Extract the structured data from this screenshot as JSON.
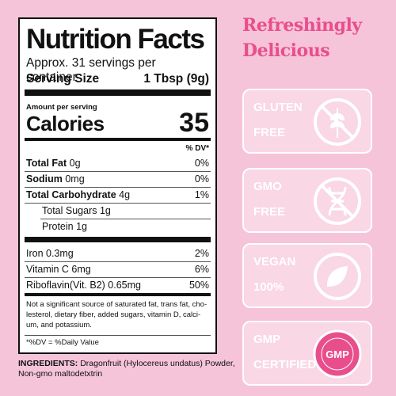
{
  "panel": {
    "title": "Nutrition Facts",
    "servings": "Approx. 31 servings per container",
    "serving_size_label": "Serving Size",
    "serving_size": "1 Tbsp (9g)",
    "amount_per_serving": "Amount per serving",
    "calories_label": "Calories",
    "calories": "35",
    "dv_header": "% DV*",
    "nutrients": [
      {
        "name": "Total Fat",
        "amount": "0g",
        "dv": "0%"
      },
      {
        "name": "Sodium",
        "amount": "0mg",
        "dv": "0%"
      },
      {
        "name": "Total Carbohydrate",
        "amount": "4g",
        "dv": "1%"
      },
      {
        "name": "Total Sugars",
        "amount": "1g"
      },
      {
        "name": "Protein",
        "amount": "1g"
      }
    ],
    "vitamins": [
      {
        "name": "Iron 0.3mg",
        "dv": "2%"
      },
      {
        "name": "Vitamin C 6mg",
        "dv": "6%"
      },
      {
        "name": "Riboflavin(Vit. B2) 0.65mg",
        "dv": "50%"
      }
    ],
    "footnote": [
      "Not a significant source of saturated fat, trans fat, cho-",
      "lesterol, dietary fiber, added sugars, vitamin D, calci-",
      "um, and potassium."
    ],
    "dv_note": "*%DV = %Daily Value"
  },
  "ingredients": {
    "label": "INGREDIENTS:",
    "text": [
      "Dragonfruit (Hylocereus undatus) Powder,",
      "Non-gmo maltodetxtrin"
    ]
  },
  "headline": [
    "Refreshingly",
    "Delicious"
  ],
  "badges": [
    {
      "lines": [
        "GLUTEN",
        "FREE"
      ]
    },
    {
      "lines": [
        "GMO",
        "FREE"
      ]
    },
    {
      "lines": [
        "VEGAN",
        "100%"
      ]
    },
    {
      "lines": [
        "GMP",
        "CERTIFIED"
      ],
      "icon_text": "GMP"
    }
  ]
}
